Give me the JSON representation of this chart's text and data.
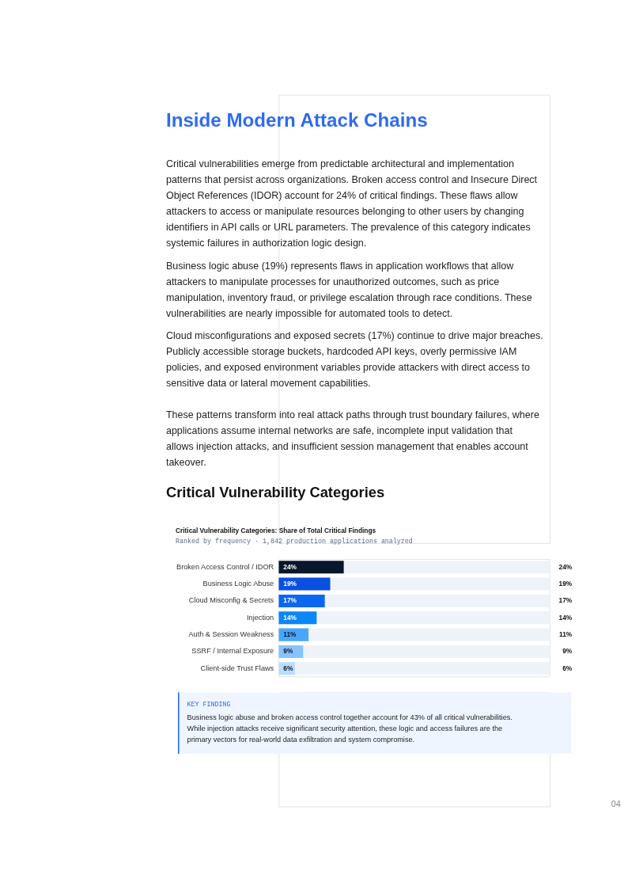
{
  "chart_data": {
    "type": "bar",
    "orientation": "horizontal",
    "title": "Critical Vulnerability Categories: Share of Total Critical Findings",
    "subtitle": "Ranked by frequency · 1,842 production applications analyzed",
    "categories": [
      "Broken Access Control / IDOR",
      "Business Logic Abuse",
      "Cloud Misconfig & Secrets",
      "Injection",
      "Auth & Session Weakness",
      "SSRF / Internal Exposure",
      "Client-side Trust Flaws"
    ],
    "values": [
      24,
      19,
      17,
      14,
      11,
      9,
      6
    ],
    "colors": [
      "#08172b",
      "#0a4fe0",
      "#0a67f2",
      "#0d86fb",
      "#4aa6fb",
      "#87c4fc",
      "#bcdcfd"
    ],
    "value_labels": [
      "24%",
      "19%",
      "17%",
      "14%",
      "11%",
      "9%",
      "6%"
    ],
    "xlim": [
      0,
      100
    ],
    "tick_labels": "y",
    "annotations": [
      "Inside Modern Attack Chains",
      "Critical vulnerabilities emerge from predictable architectural and implementation patterns that persist across organizations. Broken access control and Insecure Direct Object References (IDOR) account for 24% of critical findings. These flaws allow attackers to access or manipulate resources belonging to other users by changing identifiers in API calls or URL parameters. The prevalence of this category indicates systemic failures in authorization logic design.",
      "Business logic abuse (19%) represents flaws in application workflows that allow attackers to manipulate processes for unauthorized outcomes, such as price manipulation, inventory fraud, or privilege escalation through race conditions. These vulnerabilities are nearly impossible for automated tools to detect.",
      "Cloud misconfigurations and exposed secrets (17%) continue to drive major breaches. Publicly accessible storage buckets, hardcoded API keys, overly permissive IAM policies, and exposed environment variables provide attackers with direct access to sensitive data or lateral movement capabilities.",
      "These patterns transform into real attack paths through trust boundary failures, where applications assume internal networks are safe, incomplete input validation that allows injection attacks, and insufficient session management that enables account takeover.",
      "Critical Vulnerability Categories",
      "KEY FINDING",
      "Business logic abuse and broken access control together account for 43% of all critical vulnerabilities. While injection attacks receive significant security attention, these logic and access failures are the primary vectors for real-world data exfiltration and system compromise.",
      "04"
    ]
  }
}
